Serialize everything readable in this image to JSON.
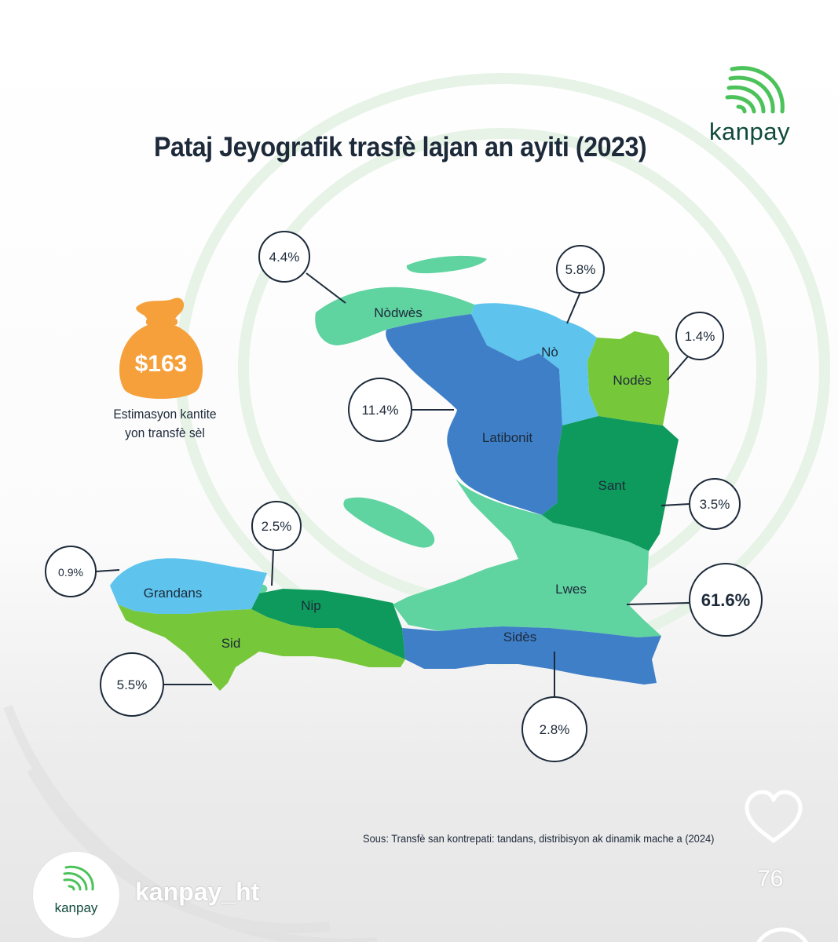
{
  "title": "Pataj Jeyografik trasfè lajan an ayiti (2023)",
  "brand": "kanpay",
  "estimate": {
    "amount": "$163",
    "caption_line1": "Estimasyon kantite",
    "caption_line2": "yon transfè sèl"
  },
  "regions": [
    {
      "name": "Nòdwès",
      "percent": "4.4%",
      "color": "#5fd3a0"
    },
    {
      "name": "Nò",
      "percent": "5.8%",
      "color": "#5ec4ee"
    },
    {
      "name": "Nodès",
      "percent": "1.4%",
      "color": "#76c83a"
    },
    {
      "name": "Latibonit",
      "percent": "11.4%",
      "color": "#3f7fc8"
    },
    {
      "name": "Sant",
      "percent": "3.5%",
      "color": "#0e9a5c"
    },
    {
      "name": "Lwes",
      "percent": "61.6%",
      "color": "#5fd3a0"
    },
    {
      "name": "Sidès",
      "percent": "2.8%",
      "color": "#3f7fc8"
    },
    {
      "name": "Nip",
      "percent": "2.5%",
      "color": "#0e9a5c"
    },
    {
      "name": "Grandans",
      "percent": "0.9%",
      "color": "#5ec4ee"
    },
    {
      "name": "Sid",
      "percent": "5.5%",
      "color": "#76c83a"
    }
  ],
  "source": "Sous: Transfè san kontrepati: tandans, distribisyon ak dinamik mache a (2024)",
  "profile": {
    "username": "kanpay_ht",
    "avatar_text": "kanpay"
  },
  "likes": "76",
  "colors": {
    "accent": "#4cc25a",
    "bag": "#f5a03a",
    "text": "#1d2a3a"
  },
  "icons": [
    "kanpay-logo-icon",
    "money-bag-icon",
    "heart-icon"
  ]
}
